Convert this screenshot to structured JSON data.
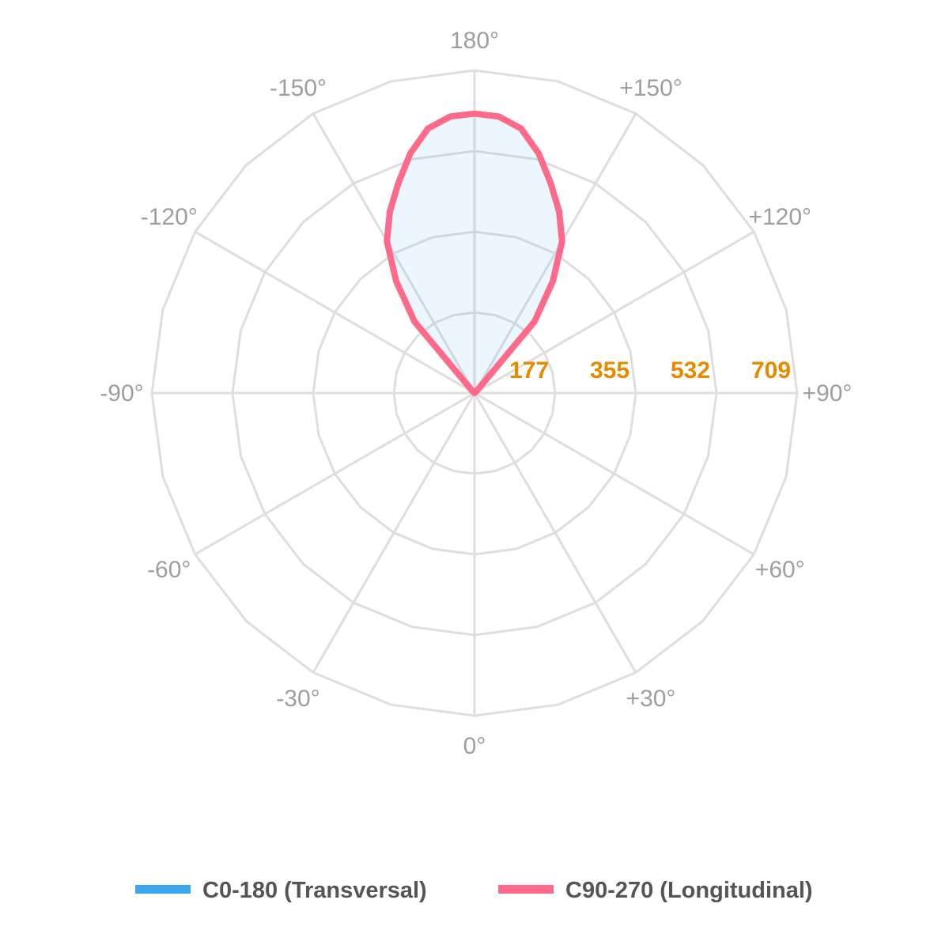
{
  "chart_data": {
    "type": "polar",
    "title": "",
    "angle_labels": [
      {
        "angle": 0,
        "text": "0°"
      },
      {
        "angle": 30,
        "text": "+30°"
      },
      {
        "angle": 60,
        "text": "+60°"
      },
      {
        "angle": 90,
        "text": "+90°"
      },
      {
        "angle": 120,
        "text": "+120°"
      },
      {
        "angle": 150,
        "text": "+150°"
      },
      {
        "angle": 180,
        "text": "180°"
      },
      {
        "angle": -150,
        "text": "-150°"
      },
      {
        "angle": -120,
        "text": "-120°"
      },
      {
        "angle": -90,
        "text": "-90°"
      },
      {
        "angle": -60,
        "text": "-60°"
      },
      {
        "angle": -30,
        "text": "-30°"
      }
    ],
    "radial_ticks": [
      "177",
      "355",
      "532",
      "709"
    ],
    "radial_max": 709,
    "grid_step_deg": 15,
    "spoke_step_deg": 30,
    "grid": true,
    "legend_position": "bottom",
    "series": [
      {
        "name": "C0-180 (Transversal)",
        "color": "#3da5ec",
        "angles": [
          0,
          135,
          140,
          145,
          150,
          155,
          160,
          165,
          170,
          175,
          180
        ],
        "values": [
          0,
          8,
          205,
          300,
          385,
          440,
          490,
          545,
          590,
          610,
          614
        ]
      },
      {
        "name": "C90-270 (Longitudinal)",
        "color": "#ff6a8a",
        "angles": [
          0,
          135,
          140,
          145,
          150,
          155,
          160,
          165,
          170,
          175,
          180
        ],
        "values": [
          0,
          8,
          205,
          300,
          385,
          440,
          490,
          545,
          590,
          610,
          614
        ]
      }
    ]
  }
}
